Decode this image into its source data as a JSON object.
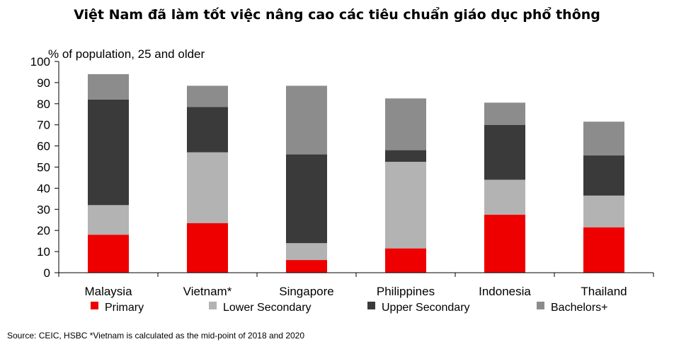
{
  "title": "Việt Nam đã làm tốt việc nâng cao các tiêu chuẩn giáo dục phổ thông",
  "source": "Source: CEIC, HSBC *Vietnam is calculated as the mid-point of 2018 and 2020",
  "chart_data": {
    "type": "bar",
    "stacked": true,
    "categories": [
      "Malaysia",
      "Vietnam*",
      "Singapore",
      "Philippines",
      "Indonesia",
      "Thailand"
    ],
    "series": [
      {
        "name": "Primary",
        "color": "#ee0000",
        "values": [
          18,
          23.5,
          6,
          11.5,
          27.5,
          21.5
        ]
      },
      {
        "name": "Lower Secondary",
        "color": "#b3b3b3",
        "values": [
          14,
          33.5,
          8,
          41,
          16.5,
          15
        ]
      },
      {
        "name": "Upper Secondary",
        "color": "#3a3a3a",
        "values": [
          50,
          21.5,
          42,
          5.5,
          26,
          19
        ]
      },
      {
        "name": "Bachelors+",
        "color": "#8c8c8c",
        "values": [
          12,
          10,
          32.5,
          24.5,
          10.5,
          16
        ]
      }
    ],
    "ylabel": "% of population, 25 and older",
    "xlabel": "",
    "ylim": [
      0,
      100
    ],
    "yticks": [
      0,
      10,
      20,
      30,
      40,
      50,
      60,
      70,
      80,
      90,
      100
    ],
    "grid": false,
    "legend": "bottom"
  }
}
